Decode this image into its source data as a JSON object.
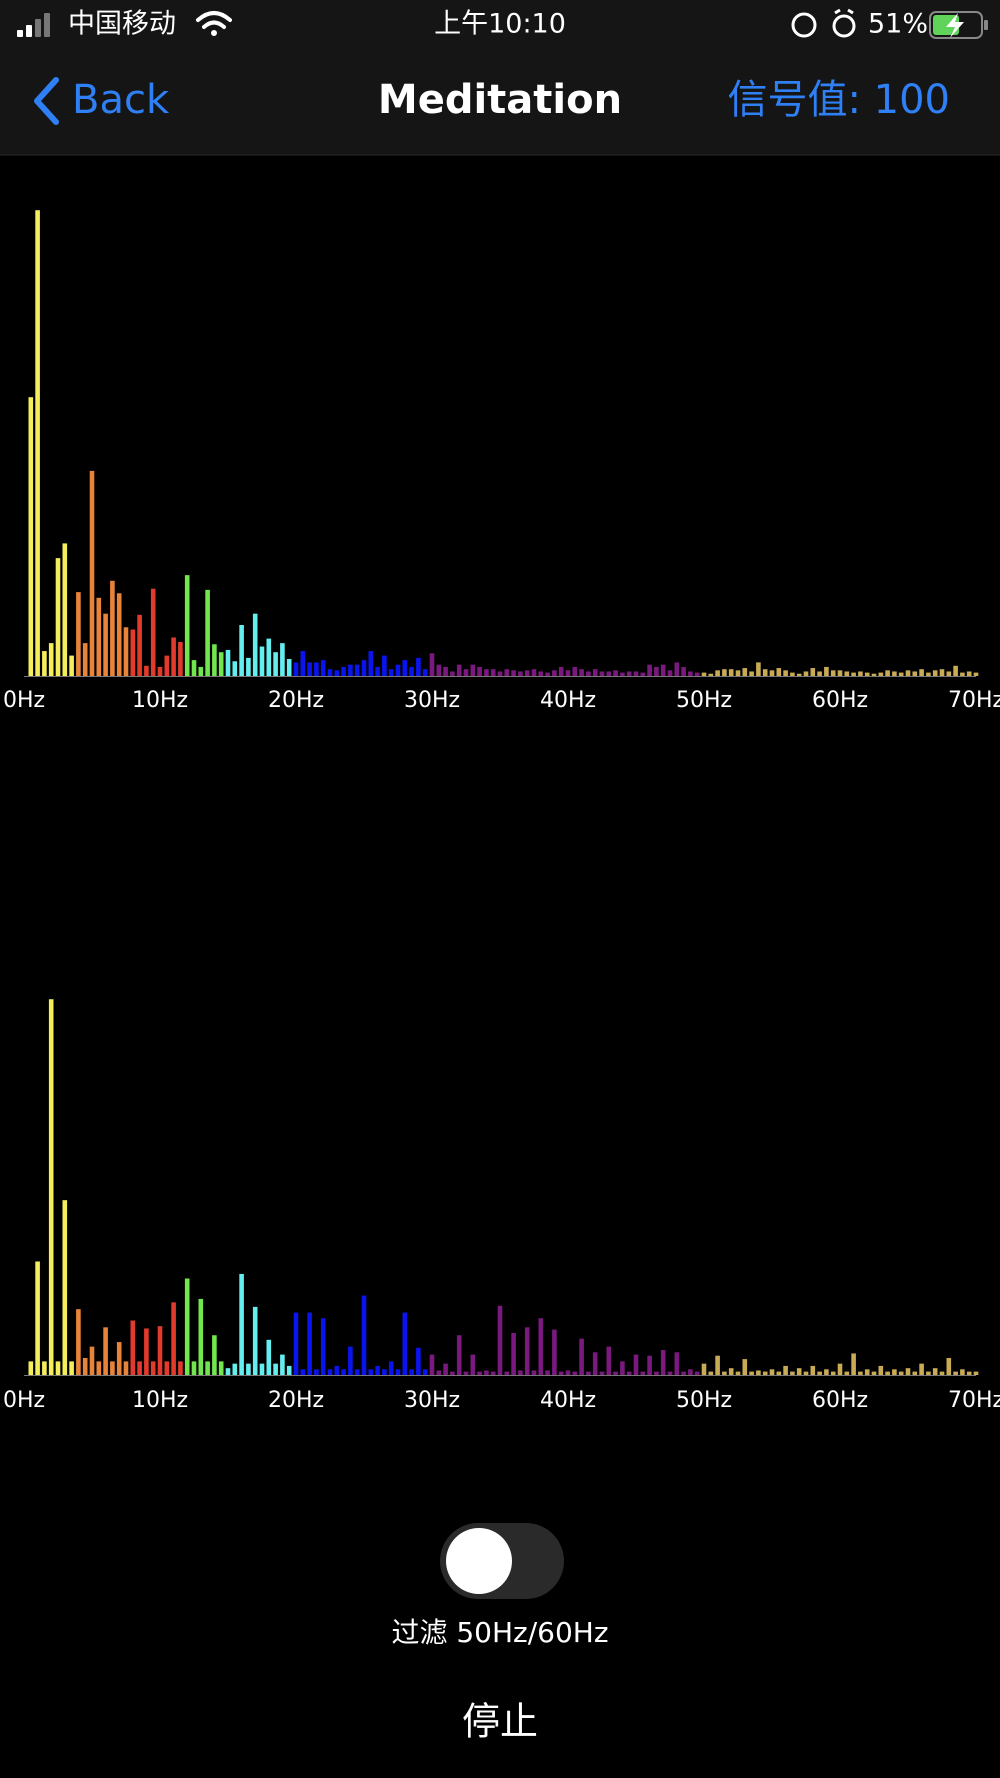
{
  "status_bar": {
    "carrier": "中国移动",
    "time": "上午10:10",
    "battery": "51%"
  },
  "nav": {
    "back": "Back",
    "title": "Meditation",
    "signal": "信号值: 100"
  },
  "chart_data": [
    {
      "type": "bar",
      "xlim": [
        0,
        70
      ],
      "ylim": [
        0,
        420
      ],
      "xticks": [
        {
          "value": 0,
          "label": "0Hz"
        },
        {
          "value": 10,
          "label": "10Hz"
        },
        {
          "value": 20,
          "label": "20Hz"
        },
        {
          "value": 30,
          "label": "30Hz"
        },
        {
          "value": 40,
          "label": "40Hz"
        },
        {
          "value": 50,
          "label": "50Hz"
        },
        {
          "value": 60,
          "label": "60Hz"
        },
        {
          "value": 70,
          "label": "70Hz"
        }
      ],
      "series": [
        {
          "color": "#f4ee5c",
          "x": [
            0.5,
            1,
            1.5,
            2,
            2.5,
            3,
            3.5
          ],
          "values": [
            246,
            411,
            22,
            29,
            104,
            117,
            18
          ]
        },
        {
          "color": "#e8833a",
          "x": [
            4,
            4.5,
            5,
            5.5,
            6,
            6.5,
            7,
            7.5
          ],
          "values": [
            74,
            29,
            181,
            69,
            55,
            84,
            73,
            43
          ]
        },
        {
          "color": "#e23a2c",
          "x": [
            8,
            8.5,
            9,
            9.5,
            10,
            10.5,
            11,
            11.5
          ],
          "values": [
            41,
            54,
            9,
            77,
            8,
            18,
            34,
            30
          ]
        },
        {
          "color": "#72e64c",
          "x": [
            12,
            12.5,
            13,
            13.5,
            14,
            14.5
          ],
          "values": [
            89,
            14,
            8,
            76,
            28,
            21
          ]
        },
        {
          "color": "#64eef0",
          "x": [
            15,
            15.5,
            16,
            16.5,
            17,
            17.5,
            18,
            18.5,
            19,
            19.5
          ],
          "values": [
            23,
            13,
            45,
            16,
            55,
            26,
            33,
            21,
            29,
            15
          ]
        },
        {
          "color": "#0a14ee",
          "x": [
            20,
            20.5,
            21,
            21.5,
            22,
            22.5,
            23,
            23.5,
            24,
            24.5,
            25,
            25.5,
            26,
            26.5,
            27,
            27.5,
            28,
            28.5,
            29,
            29.5
          ],
          "values": [
            12,
            22,
            12,
            12,
            14,
            6,
            5,
            8,
            10,
            10,
            14,
            22,
            8,
            18,
            6,
            10,
            14,
            8,
            16,
            6
          ]
        },
        {
          "color": "#7a1a7e",
          "x": [
            30,
            30.5,
            31,
            31.5,
            32,
            32.5,
            33,
            33.5,
            34,
            34.5,
            35,
            35.5,
            36,
            36.5,
            37,
            37.5,
            38,
            38.5,
            39,
            39.5,
            40,
            40.5,
            41,
            41.5,
            42,
            42.5,
            43,
            43.5,
            44,
            44.5,
            45,
            45.5,
            46,
            46.5,
            47,
            47.5,
            48,
            48.5,
            49,
            49.5
          ],
          "values": [
            20,
            10,
            8,
            4,
            10,
            6,
            10,
            8,
            6,
            6,
            4,
            6,
            5,
            4,
            5,
            6,
            4,
            3,
            5,
            8,
            5,
            8,
            6,
            4,
            6,
            4,
            4,
            5,
            3,
            4,
            4,
            3,
            10,
            8,
            10,
            5,
            12,
            8,
            4,
            3
          ]
        },
        {
          "color": "#c9ab55",
          "x": [
            50,
            50.5,
            51,
            51.5,
            52,
            52.5,
            53,
            53.5,
            54,
            54.5,
            55,
            55.5,
            56,
            56.5,
            57,
            57.5,
            58,
            58.5,
            59,
            59.5,
            60,
            60.5,
            61,
            61.5,
            62,
            62.5,
            63,
            63.5,
            64,
            64.5,
            65,
            65.5,
            66,
            66.5,
            67,
            67.5,
            68,
            68.5,
            69,
            69.5,
            70
          ],
          "values": [
            3,
            2,
            5,
            6,
            6,
            5,
            7,
            4,
            12,
            6,
            5,
            7,
            5,
            3,
            2,
            4,
            7,
            4,
            8,
            5,
            5,
            4,
            3,
            4,
            3,
            2,
            3,
            5,
            4,
            3,
            5,
            4,
            6,
            3,
            5,
            6,
            4,
            9,
            3,
            4,
            3
          ]
        }
      ]
    },
    {
      "type": "bar",
      "xlim": [
        0,
        70
      ],
      "ylim": [
        0,
        340
      ],
      "xticks": [
        {
          "value": 0,
          "label": "0Hz"
        },
        {
          "value": 10,
          "label": "10Hz"
        },
        {
          "value": 20,
          "label": "20Hz"
        },
        {
          "value": 30,
          "label": "30Hz"
        },
        {
          "value": 40,
          "label": "40Hz"
        },
        {
          "value": 50,
          "label": "50Hz"
        },
        {
          "value": 60,
          "label": "60Hz"
        },
        {
          "value": 70,
          "label": "70Hz"
        }
      ],
      "series": [
        {
          "color": "#f4ee5c",
          "x": [
            0.5,
            1,
            1.5,
            2,
            2.5,
            3,
            3.5
          ],
          "values": [
            12,
            100,
            12,
            331,
            12,
            154,
            12
          ]
        },
        {
          "color": "#e8833a",
          "x": [
            4,
            4.5,
            5,
            5.5,
            6,
            6.5,
            7,
            7.5
          ],
          "values": [
            58,
            15,
            25,
            12,
            42,
            12,
            29,
            12
          ]
        },
        {
          "color": "#e23a2c",
          "x": [
            8,
            8.5,
            9,
            9.5,
            10,
            10.5,
            11,
            11.5
          ],
          "values": [
            48,
            12,
            41,
            12,
            43,
            12,
            64,
            12
          ]
        },
        {
          "color": "#72e64c",
          "x": [
            12,
            12.5,
            13,
            13.5,
            14,
            14.5
          ],
          "values": [
            85,
            12,
            67,
            12,
            35,
            12
          ]
        },
        {
          "color": "#64eef0",
          "x": [
            15,
            15.5,
            16,
            16.5,
            17,
            17.5,
            18,
            18.5,
            19,
            19.5
          ],
          "values": [
            6,
            10,
            89,
            10,
            60,
            10,
            31,
            10,
            18,
            8
          ]
        },
        {
          "color": "#0a14ee",
          "x": [
            20,
            20.5,
            21,
            21.5,
            22,
            22.5,
            23,
            23.5,
            24,
            24.5,
            25,
            25.5,
            26,
            26.5,
            27,
            27.5,
            28,
            28.5,
            29,
            29.5
          ],
          "values": [
            55,
            5,
            55,
            5,
            50,
            5,
            8,
            5,
            25,
            5,
            70,
            5,
            8,
            5,
            12,
            5,
            55,
            5,
            24,
            5
          ]
        },
        {
          "color": "#7a1a7e",
          "x": [
            30,
            30.5,
            31,
            31.5,
            32,
            32.5,
            33,
            33.5,
            34,
            34.5,
            35,
            35.5,
            36,
            36.5,
            37,
            37.5,
            38,
            38.5,
            39,
            39.5,
            40,
            40.5,
            41,
            41.5,
            42,
            42.5,
            43,
            43.5,
            44,
            44.5,
            45,
            45.5,
            46,
            46.5,
            47,
            47.5,
            48,
            48.5,
            49,
            49.5
          ],
          "values": [
            18,
            4,
            10,
            3,
            35,
            3,
            18,
            3,
            4,
            3,
            61,
            3,
            37,
            4,
            42,
            4,
            50,
            4,
            40,
            3,
            4,
            3,
            32,
            3,
            20,
            3,
            25,
            3,
            12,
            3,
            18,
            3,
            17,
            3,
            22,
            3,
            20,
            3,
            5,
            3
          ]
        },
        {
          "color": "#c9ab55",
          "x": [
            50,
            50.5,
            51,
            51.5,
            52,
            52.5,
            53,
            53.5,
            54,
            54.5,
            55,
            55.5,
            56,
            56.5,
            57,
            57.5,
            58,
            58.5,
            59,
            59.5,
            60,
            60.5,
            61,
            61.5,
            62,
            62.5,
            63,
            63.5,
            64,
            64.5,
            65,
            65.5,
            66,
            66.5,
            67,
            67.5,
            68,
            68.5,
            69,
            69.5,
            70
          ],
          "values": [
            10,
            3,
            17,
            3,
            6,
            3,
            14,
            3,
            4,
            3,
            5,
            3,
            8,
            3,
            6,
            3,
            8,
            3,
            5,
            3,
            10,
            3,
            19,
            3,
            5,
            3,
            8,
            3,
            5,
            3,
            6,
            3,
            10,
            3,
            6,
            3,
            15,
            3,
            5,
            3,
            3
          ]
        }
      ]
    }
  ],
  "controls": {
    "filter_label": "过滤 50Hz/60Hz",
    "stop": "停止"
  }
}
